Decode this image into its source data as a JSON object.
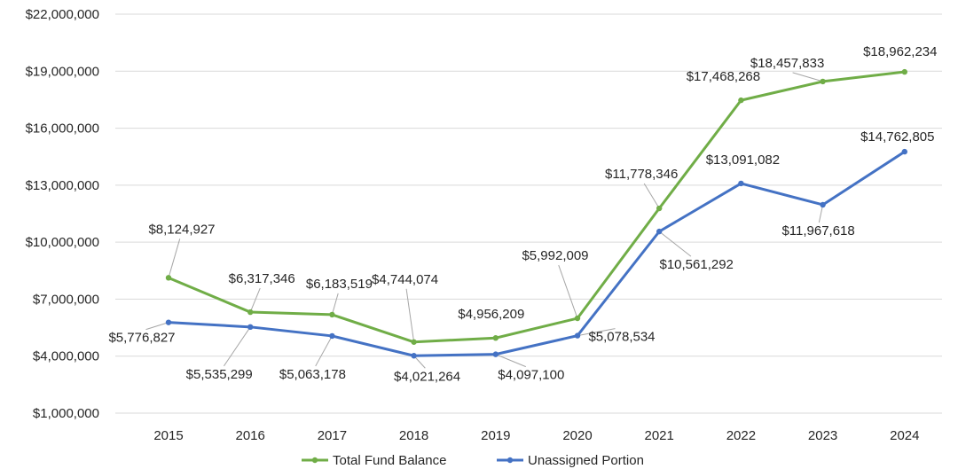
{
  "chart_data": {
    "type": "line",
    "title": "",
    "xlabel": "",
    "ylabel": "",
    "categories": [
      "2015",
      "2016",
      "2017",
      "2018",
      "2019",
      "2020",
      "2021",
      "2022",
      "2023",
      "2024"
    ],
    "ylim": [
      1000000,
      22000000
    ],
    "yticks": [
      1000000,
      4000000,
      7000000,
      10000000,
      13000000,
      16000000,
      19000000,
      22000000
    ],
    "ytick_labels": [
      "$1,000,000",
      "$4,000,000",
      "$7,000,000",
      "$10,000,000",
      "$13,000,000",
      "$16,000,000",
      "$19,000,000",
      "$22,000,000"
    ],
    "grid": true,
    "legend_position": "bottom",
    "series": [
      {
        "name": "Total Fund Balance",
        "color": "#70ad47",
        "values": [
          8124927,
          6317346,
          6183519,
          4744074,
          4956209,
          5992009,
          11778346,
          17468268,
          18457833,
          18962234
        ],
        "labels": [
          "$8,124,927",
          "$6,317,346",
          "$6,183,519",
          "$4,744,074",
          "$4,956,209",
          "$5,992,009",
          "$11,778,346",
          "$17,468,268",
          "$18,457,833",
          "$18,962,234"
        ]
      },
      {
        "name": "Unassigned Portion",
        "color": "#4472c4",
        "values": [
          5776827,
          5535299,
          5063178,
          4021264,
          4097100,
          5078534,
          10561292,
          13091082,
          11967618,
          14762805
        ],
        "labels": [
          "$5,776,827",
          "$5,535,299",
          "$5,063,178",
          "$4,021,264",
          "$4,097,100",
          "$5,078,534",
          "$10,561,292",
          "$13,091,082",
          "$11,967,618",
          "$14,762,805"
        ]
      }
    ]
  }
}
